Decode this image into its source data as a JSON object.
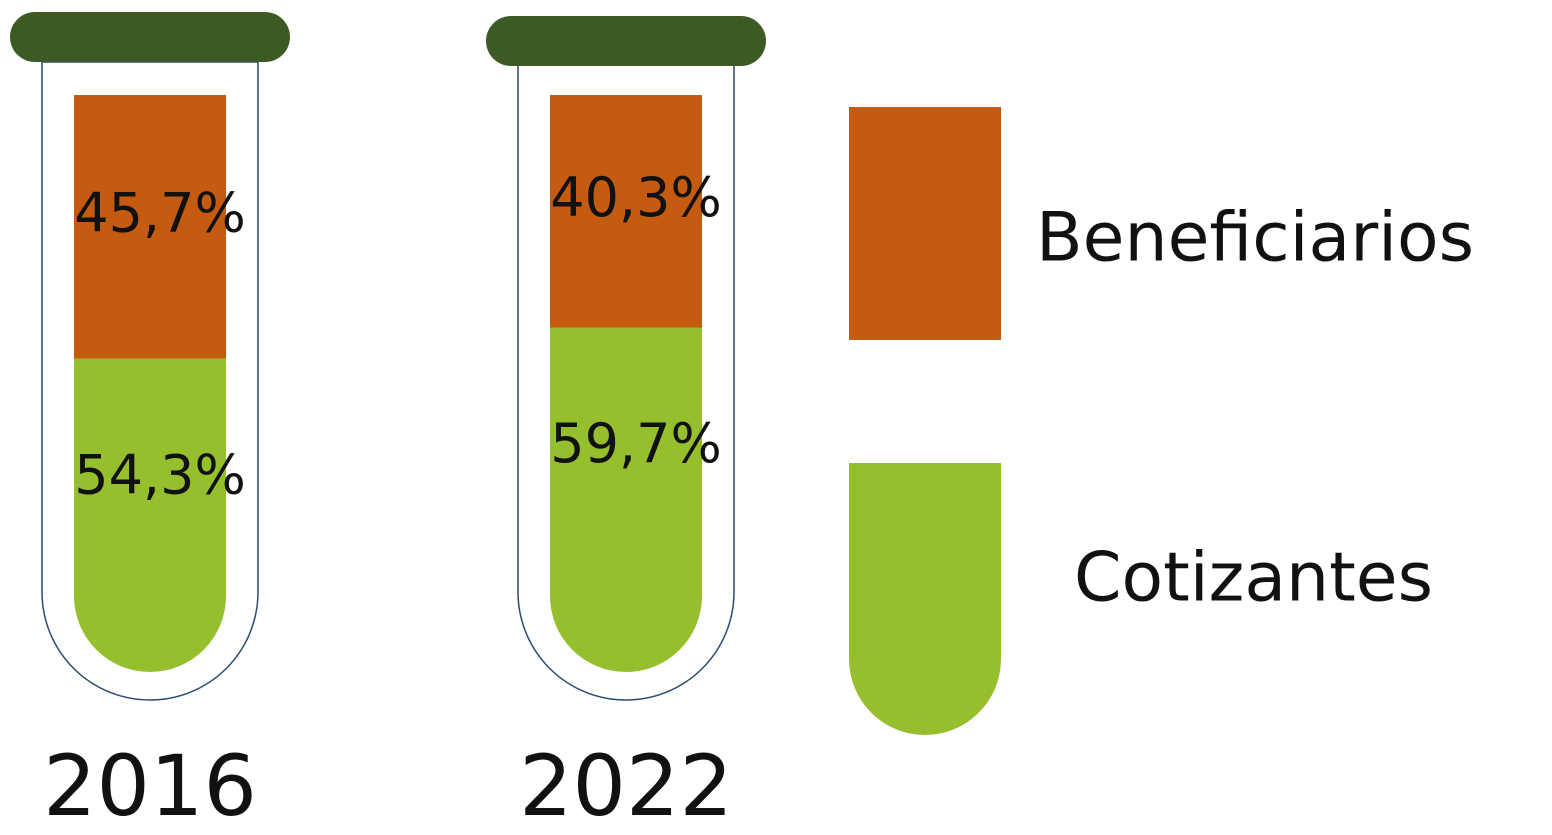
{
  "chart_data": {
    "type": "bar",
    "stacked": true,
    "categories": [
      "2016",
      "2022"
    ],
    "series": [
      {
        "name": "Cotizantes",
        "color": "#96bf2d",
        "values": [
          54.3,
          59.7
        ],
        "value_labels": [
          "54,3%",
          "59,7%"
        ]
      },
      {
        "name": "Beneficiarios",
        "color": "#c55a11",
        "values": [
          45.7,
          40.3
        ],
        "value_labels": [
          "45,7%",
          "40,3%"
        ]
      }
    ]
  }
}
